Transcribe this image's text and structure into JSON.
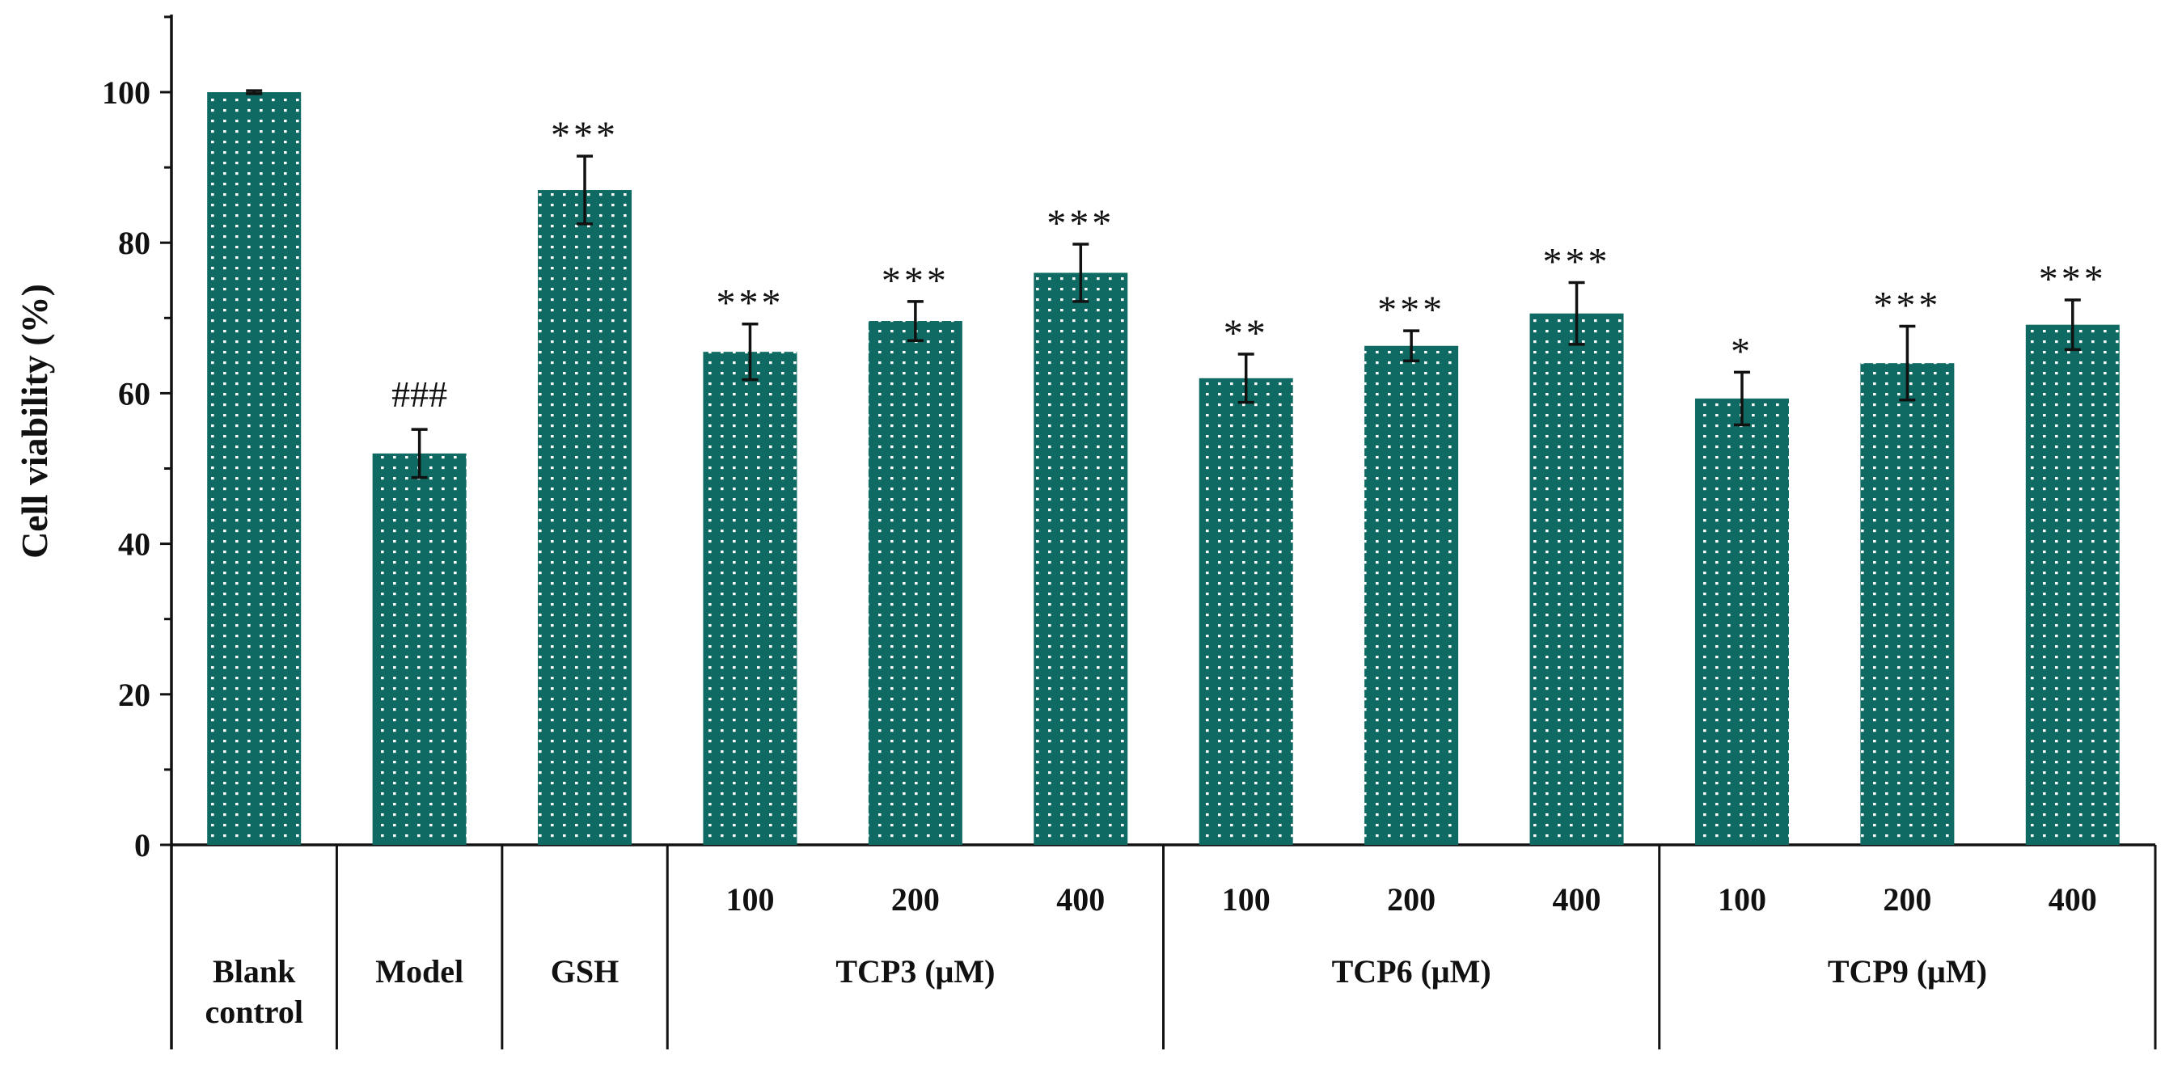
{
  "chart_data": {
    "type": "bar",
    "ylabel": "Cell viability (%)",
    "ylim": [
      0,
      110
    ],
    "yticks": [
      0,
      20,
      40,
      60,
      80,
      100
    ],
    "bar_color": "#0e6a62",
    "bars": [
      {
        "label": "Blank control",
        "label_lines": [
          "Blank",
          "control"
        ],
        "value": 100.0,
        "error": 0.2,
        "annotation": ""
      },
      {
        "label": "Model",
        "label_lines": [
          "Model"
        ],
        "value": 52.0,
        "error": 3.2,
        "annotation": "###"
      },
      {
        "label": "GSH",
        "label_lines": [
          "GSH"
        ],
        "value": 87.0,
        "error": 4.5,
        "annotation": "***"
      },
      {
        "label": "TCP3 100",
        "sub": "100",
        "value": 65.5,
        "error": 3.7,
        "annotation": "***"
      },
      {
        "label": "TCP3 200",
        "sub": "200",
        "value": 69.6,
        "error": 2.6,
        "annotation": "***"
      },
      {
        "label": "TCP3 400",
        "sub": "400",
        "value": 76.0,
        "error": 3.8,
        "annotation": "***"
      },
      {
        "label": "TCP6 100",
        "sub": "100",
        "value": 62.0,
        "error": 3.2,
        "annotation": "**"
      },
      {
        "label": "TCP6 200",
        "sub": "200",
        "value": 66.3,
        "error": 2.0,
        "annotation": "***"
      },
      {
        "label": "TCP6 400",
        "sub": "400",
        "value": 70.6,
        "error": 4.1,
        "annotation": "***"
      },
      {
        "label": "TCP9 100",
        "sub": "100",
        "value": 59.3,
        "error": 3.5,
        "annotation": "*"
      },
      {
        "label": "TCP9 200",
        "sub": "200",
        "value": 64.0,
        "error": 4.9,
        "annotation": "***"
      },
      {
        "label": "TCP9 400",
        "sub": "400",
        "value": 69.1,
        "error": 3.3,
        "annotation": "***"
      }
    ],
    "groups": [
      {
        "label": "TCP3 (μM)",
        "bars": [
          3,
          4,
          5
        ]
      },
      {
        "label": "TCP6 (μM)",
        "bars": [
          6,
          7,
          8
        ]
      },
      {
        "label": "TCP9 (μM)",
        "bars": [
          9,
          10,
          11
        ]
      }
    ]
  }
}
